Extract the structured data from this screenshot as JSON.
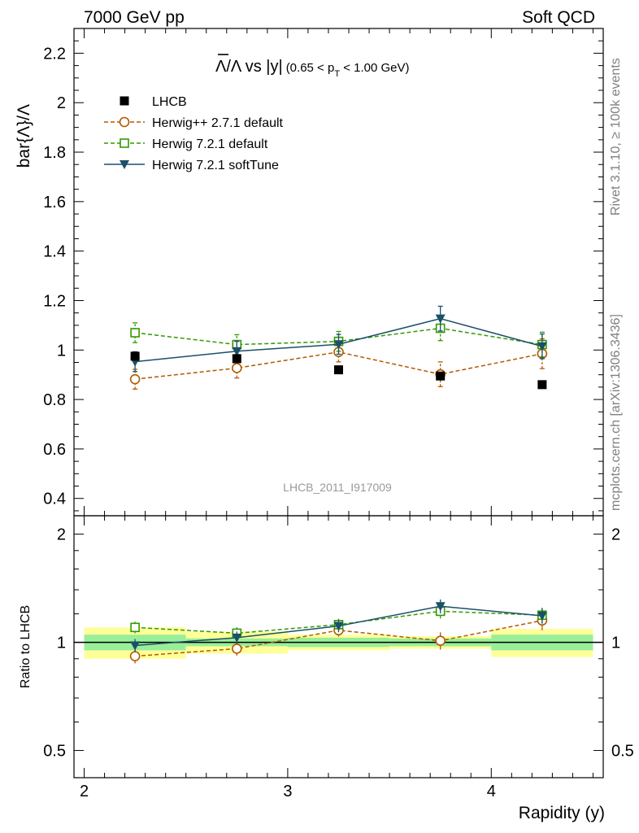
{
  "header": {
    "left": "7000 GeV pp",
    "right": "Soft QCD"
  },
  "side": {
    "rivet": "Rivet 3.1.10, ≥ 100k events",
    "source": "mcplots.cern.ch [arXiv:1306.3436]"
  },
  "chart_data": {
    "type": "scatter",
    "title": "Λ̄/Λ vs |y|",
    "title_parts": {
      "main": "Λ/Λ vs |y|",
      "cut": "(0.65 < p",
      "cut_sub": "T",
      "cut_end": " < 1.00 GeV)"
    },
    "watermark": "LHCB_2011_I917009",
    "xlabel": "Rapidity (y)",
    "ylabel": "bar{Λ}/Λ",
    "ratio_ylabel": "Ratio to LHCB",
    "xlim": [
      1.95,
      4.55
    ],
    "ylim": [
      0.33,
      2.3
    ],
    "ratio_ylim": [
      0.42,
      2.25
    ],
    "x_ticks": [
      "2",
      "3",
      "4"
    ],
    "y_ticks": [
      "0.4",
      "0.6",
      "0.8",
      "1",
      "1.2",
      "1.4",
      "1.6",
      "1.8",
      "2",
      "2.2"
    ],
    "ratio_y_ticks": [
      "0.5",
      "1",
      "2"
    ],
    "legend_position": "top-left",
    "data": {
      "name": "LHCB",
      "x": [
        2.25,
        2.75,
        3.25,
        3.75,
        4.25
      ],
      "x_bins": [
        [
          2.0,
          2.5
        ],
        [
          2.5,
          3.0
        ],
        [
          3.0,
          3.5
        ],
        [
          3.5,
          4.0
        ],
        [
          4.0,
          4.5
        ]
      ],
      "y": [
        0.975,
        0.965,
        0.92,
        0.895,
        0.86
      ],
      "stat_band": [
        [
          0.95,
          1.05
        ],
        [
          0.975,
          1.025
        ],
        [
          0.97,
          1.03
        ],
        [
          0.975,
          1.025
        ],
        [
          0.95,
          1.05
        ]
      ],
      "total_band": [
        [
          0.9,
          1.1
        ],
        [
          0.93,
          1.07
        ],
        [
          0.95,
          1.05
        ],
        [
          0.96,
          1.04
        ],
        [
          0.91,
          1.09
        ]
      ]
    },
    "series": [
      {
        "name": "Herwig++ 2.7.1 default",
        "color": "#b35900",
        "marker": "circle",
        "dashed": true,
        "x": [
          2.25,
          2.75,
          3.25,
          3.75,
          4.25
        ],
        "y": [
          0.882,
          0.927,
          0.992,
          0.902,
          0.985
        ],
        "err": [
          0.04,
          0.04,
          0.04,
          0.05,
          0.06
        ],
        "ratio": [
          0.915,
          0.96,
          1.08,
          1.01,
          1.15
        ]
      },
      {
        "name": "Herwig 7.2.1 default",
        "color": "#339900",
        "marker": "square",
        "dashed": true,
        "x": [
          2.25,
          2.75,
          3.25,
          3.75,
          4.25
        ],
        "y": [
          1.07,
          1.022,
          1.035,
          1.088,
          1.022
        ],
        "err": [
          0.04,
          0.04,
          0.04,
          0.05,
          0.05
        ],
        "ratio": [
          1.1,
          1.06,
          1.12,
          1.22,
          1.19
        ]
      },
      {
        "name": "Herwig 7.2.1 softTune",
        "color": "#1a5068",
        "marker": "triangle",
        "dashed": false,
        "x": [
          2.25,
          2.75,
          3.25,
          3.75,
          4.25
        ],
        "y": [
          0.953,
          0.995,
          1.023,
          1.127,
          1.015
        ],
        "err": [
          0.04,
          0.04,
          0.04,
          0.05,
          0.05
        ],
        "ratio": [
          0.98,
          1.03,
          1.11,
          1.26,
          1.185
        ]
      }
    ]
  }
}
